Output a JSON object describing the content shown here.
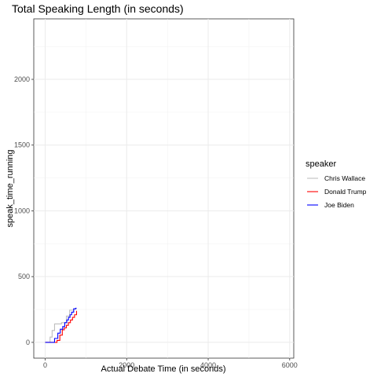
{
  "chart_data": {
    "type": "line",
    "step": true,
    "title": "Total Speaking Length (in seconds)",
    "xlabel": "Actual Debate Time (in seconds)",
    "ylabel": "speak_time_running",
    "xlim": [
      -280,
      6100
    ],
    "ylim": [
      -120,
      2460
    ],
    "x_ticks": [
      0,
      2000,
      4000,
      6000
    ],
    "x_tick_labels": [
      "0",
      "2000",
      "4000",
      "6000"
    ],
    "y_ticks": [
      0,
      500,
      1000,
      1500,
      2000
    ],
    "y_tick_labels": [
      "0",
      "500",
      "1000",
      "1500",
      "2000"
    ],
    "grid": true,
    "legend": {
      "title": "speaker",
      "position": "right"
    },
    "series": [
      {
        "name": "Chris Wallace",
        "color": "#bebebe",
        "points": [
          [
            0,
            0
          ],
          [
            120,
            0
          ],
          [
            120,
            40
          ],
          [
            170,
            40
          ],
          [
            170,
            90
          ],
          [
            230,
            90
          ],
          [
            230,
            140
          ],
          [
            400,
            140
          ],
          [
            400,
            150
          ],
          [
            520,
            150
          ],
          [
            520,
            200
          ],
          [
            600,
            200
          ],
          [
            600,
            245
          ],
          [
            700,
            245
          ],
          [
            700,
            255
          ],
          [
            770,
            255
          ]
        ]
      },
      {
        "name": "Donald Trump",
        "color": "#ff0000",
        "points": [
          [
            0,
            0
          ],
          [
            290,
            0
          ],
          [
            290,
            15
          ],
          [
            360,
            15
          ],
          [
            360,
            55
          ],
          [
            420,
            55
          ],
          [
            420,
            95
          ],
          [
            470,
            95
          ],
          [
            470,
            110
          ],
          [
            520,
            110
          ],
          [
            520,
            130
          ],
          [
            570,
            130
          ],
          [
            570,
            150
          ],
          [
            620,
            150
          ],
          [
            620,
            170
          ],
          [
            670,
            170
          ],
          [
            670,
            190
          ],
          [
            720,
            190
          ],
          [
            720,
            210
          ],
          [
            770,
            210
          ],
          [
            770,
            240
          ]
        ]
      },
      {
        "name": "Joe Biden",
        "color": "#0000ff",
        "points": [
          [
            0,
            0
          ],
          [
            230,
            0
          ],
          [
            230,
            30
          ],
          [
            310,
            30
          ],
          [
            310,
            70
          ],
          [
            370,
            70
          ],
          [
            370,
            100
          ],
          [
            430,
            100
          ],
          [
            430,
            120
          ],
          [
            480,
            120
          ],
          [
            480,
            150
          ],
          [
            530,
            150
          ],
          [
            530,
            170
          ],
          [
            570,
            170
          ],
          [
            570,
            190
          ],
          [
            610,
            190
          ],
          [
            610,
            210
          ],
          [
            650,
            210
          ],
          [
            650,
            230
          ],
          [
            700,
            230
          ],
          [
            700,
            255
          ],
          [
            750,
            255
          ],
          [
            750,
            260
          ],
          [
            770,
            260
          ]
        ]
      }
    ]
  }
}
